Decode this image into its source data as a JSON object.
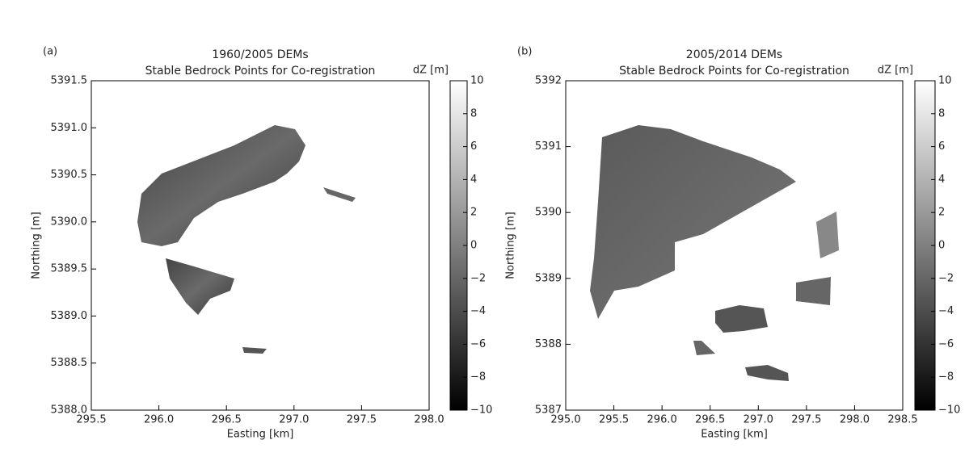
{
  "chart_data": [
    {
      "type": "image",
      "panel_label": "(a)",
      "title": [
        "1960/2005 DEMs",
        "Stable Bedrock Points for Co-registration"
      ],
      "xlabel": "Easting [km]",
      "ylabel": "Northing [m]",
      "colorbar_label": "dZ [m]",
      "xlim": [
        295.5,
        298.0
      ],
      "xticks": [
        295.5,
        {
          "value": 296,
          "label": "296.0"
        },
        296.5,
        {
          "value": 297,
          "label": "297.0"
        },
        297.5,
        {
          "value": 298,
          "label": "298.0"
        }
      ],
      "ylim": [
        5388.0,
        5391.5
      ],
      "yticks": [
        {
          "value": 5388,
          "label": "5388.0"
        },
        5388.5,
        {
          "value": 5389,
          "label": "5389.0"
        },
        5389.5,
        {
          "value": 5390,
          "label": "5390.0"
        },
        5390.5,
        {
          "value": 5391,
          "label": "5391.0"
        },
        5391.5
      ],
      "clim": [
        -10,
        10
      ],
      "cticks": [
        {
          "value": -10,
          "label": "−10"
        },
        {
          "value": -8,
          "label": "−8"
        },
        {
          "value": -6,
          "label": "−6"
        },
        {
          "value": -4,
          "label": "−4"
        },
        {
          "value": -2,
          "label": "−2"
        },
        0,
        2,
        4,
        6,
        8,
        10
      ]
    },
    {
      "type": "image",
      "panel_label": "(b)",
      "title": [
        "2005/2014 DEMs",
        "Stable Bedrock Points for Co-registration"
      ],
      "xlabel": "Easting [km]",
      "ylabel": "Northing [m]",
      "colorbar_label": "dZ [m]",
      "xlim": [
        295.0,
        298.5
      ],
      "xticks": [
        {
          "value": 295,
          "label": "295.0"
        },
        295.5,
        {
          "value": 296,
          "label": "296.0"
        },
        296.5,
        {
          "value": 297,
          "label": "297.0"
        },
        297.5,
        {
          "value": 298,
          "label": "298.0"
        },
        298.5
      ],
      "ylim": [
        5387,
        5392
      ],
      "yticks": [
        5387,
        5388,
        5389,
        5390,
        5391,
        5392
      ],
      "clim": [
        -10,
        10
      ],
      "cticks": [
        {
          "value": -10,
          "label": "−10"
        },
        {
          "value": -8,
          "label": "−8"
        },
        {
          "value": -6,
          "label": "−6"
        },
        {
          "value": -4,
          "label": "−4"
        },
        {
          "value": -2,
          "label": "−2"
        },
        0,
        2,
        4,
        6,
        8,
        10
      ]
    }
  ]
}
